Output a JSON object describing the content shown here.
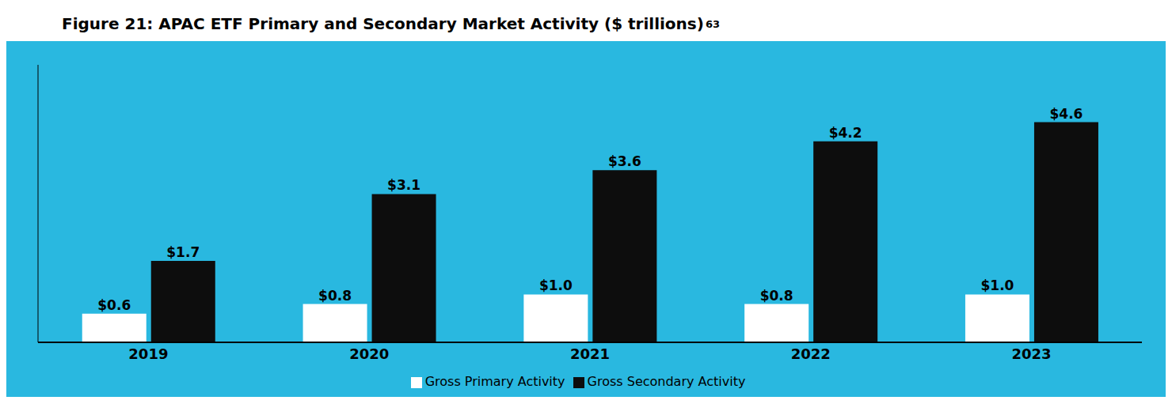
{
  "chart_data": {
    "type": "bar",
    "title": "Figure 21: APAC ETF Primary and Secondary Market Activity ($ trillions)",
    "annotations": [
      "63"
    ],
    "categories": [
      "2019",
      "2020",
      "2021",
      "2022",
      "2023"
    ],
    "series": [
      {
        "name": "Gross Primary Activity",
        "color": "#ffffff",
        "values": [
          0.6,
          0.8,
          1.0,
          0.8,
          1.0
        ],
        "value_labels": [
          "$0.6",
          "$0.8",
          "$1.0",
          "$0.8",
          "$1.0"
        ]
      },
      {
        "name": "Gross Secondary Activity",
        "color": "#0d0d0d",
        "values": [
          1.7,
          3.1,
          3.6,
          4.2,
          4.6
        ],
        "value_labels": [
          "$1.7",
          "$3.1",
          "$3.6",
          "$4.2",
          "$4.6"
        ]
      }
    ],
    "ylim": [
      0,
      5.8
    ],
    "yticks": [],
    "grid": false,
    "legend": "bottom",
    "data_labels": true,
    "tick_labels": "x"
  }
}
